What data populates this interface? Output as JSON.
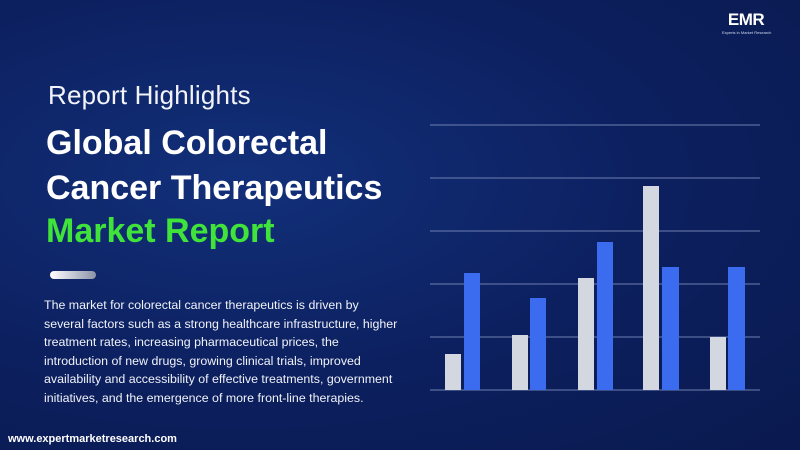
{
  "logo": {
    "mark": "EMR",
    "tagline": "Experts in Market Research"
  },
  "header": {
    "kicker": "Report Highlights",
    "title_lines": [
      "Global Colorectal",
      "Cancer Therapeutics",
      "Market Report"
    ]
  },
  "description": {
    "lines": [
      "The market for colorectal cancer therapeutics is driven by",
      "several factors such as a strong healthcare infrastructure, higher",
      "treatment rates, increasing pharmaceutical prices, the",
      "introduction of new drugs, growing clinical trials, improved",
      "availability and accessibility of effective treatments, government",
      "initiatives, and the emergence of more front-line therapies."
    ]
  },
  "footer": {
    "url": "www.expertmarketresearch.com"
  }
}
